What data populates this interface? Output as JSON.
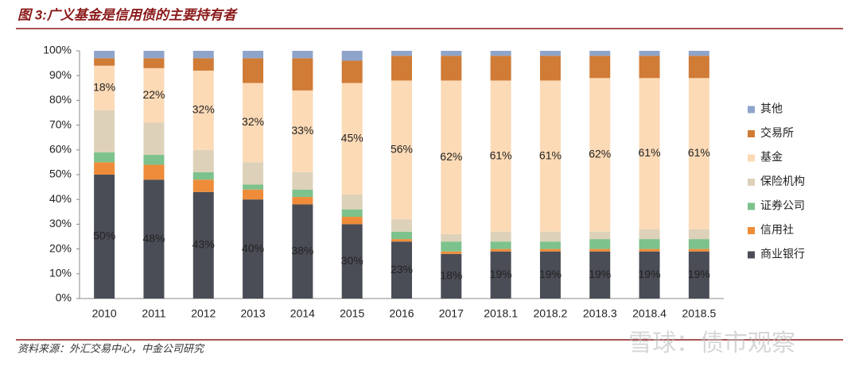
{
  "title": "图 3:广义基金是信用债的主要持有者",
  "source": "资料来源：外汇交易中心，中金公司研究",
  "watermark": "雪球：债市观察",
  "chart_data": {
    "type": "stacked_bar",
    "categories": [
      "2010",
      "2011",
      "2012",
      "2013",
      "2014",
      "2015",
      "2016",
      "2017",
      "2018.1",
      "2018.2",
      "2018.3",
      "2018.4",
      "2018.5"
    ],
    "series": [
      {
        "name": "商业银行",
        "color": "#4a4d56",
        "values": [
          50,
          48,
          43,
          40,
          38,
          30,
          23,
          18,
          19,
          19,
          19,
          19,
          19
        ],
        "value_labels": [
          "50%",
          "48%",
          "43%",
          "40%",
          "38%",
          "30%",
          "23%",
          "18%",
          "19%",
          "19%",
          "19%",
          "19%",
          "19%"
        ]
      },
      {
        "name": "信用社",
        "color": "#ee8c3a",
        "values": [
          5,
          6,
          5,
          4,
          3,
          3,
          1,
          1,
          1,
          1,
          1,
          1,
          1
        ]
      },
      {
        "name": "证券公司",
        "color": "#7dc28c",
        "values": [
          4,
          4,
          3,
          2,
          3,
          3,
          3,
          4,
          3,
          3,
          4,
          4,
          4
        ]
      },
      {
        "name": "保险机构",
        "color": "#ddd1b9",
        "values": [
          17,
          13,
          9,
          9,
          7,
          6,
          5,
          3,
          4,
          4,
          3,
          4,
          4
        ]
      },
      {
        "name": "基金",
        "color": "#fcdab6",
        "values": [
          18,
          22,
          32,
          32,
          33,
          45,
          56,
          62,
          61,
          61,
          62,
          61,
          61
        ],
        "value_labels": [
          "18%",
          "22%",
          "32%",
          "32%",
          "33%",
          "45%",
          "56%",
          "62%",
          "61%",
          "61%",
          "62%",
          "61%",
          "61%"
        ]
      },
      {
        "name": "交易所",
        "color": "#d07b36",
        "values": [
          3,
          4,
          5,
          10,
          13,
          9,
          10,
          10,
          10,
          10,
          9,
          9,
          9
        ]
      },
      {
        "name": "其他",
        "color": "#8fa4ca",
        "values": [
          3,
          3,
          3,
          3,
          3,
          4,
          2,
          2,
          2,
          2,
          2,
          2,
          2
        ]
      }
    ],
    "ylim": [
      0,
      100
    ],
    "yticks": [
      {
        "value": 0,
        "label": "0%"
      },
      {
        "value": 10,
        "label": "10%"
      },
      {
        "value": 20,
        "label": "20%"
      },
      {
        "value": 30,
        "label": "30%"
      },
      {
        "value": 40,
        "label": "40%"
      },
      {
        "value": 50,
        "label": "50%"
      },
      {
        "value": 60,
        "label": "60%"
      },
      {
        "value": 70,
        "label": "70%"
      },
      {
        "value": 80,
        "label": "80%"
      },
      {
        "value": 90,
        "label": "90%"
      },
      {
        "value": 100,
        "label": "100%"
      }
    ],
    "legend": "right"
  }
}
